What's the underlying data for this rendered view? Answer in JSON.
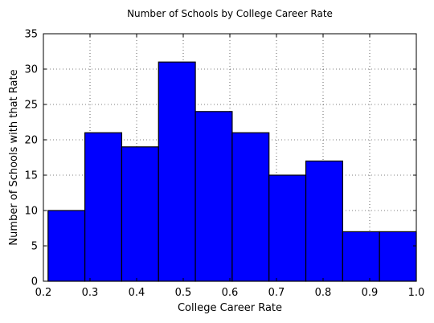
{
  "chart_data": {
    "type": "bar",
    "title": "Number of Schools by College Career Rate",
    "xlabel": "College Career Rate",
    "ylabel": "Number of Schools with that Rate",
    "xlim": [
      0.2,
      1.0
    ],
    "ylim": [
      0,
      35
    ],
    "xticks": [
      "0.2",
      "0.3",
      "0.4",
      "0.5",
      "0.6",
      "0.7",
      "0.8",
      "0.9",
      "1.0"
    ],
    "yticks": [
      "0",
      "5",
      "10",
      "15",
      "20",
      "25",
      "30",
      "35"
    ],
    "grid": true,
    "bar_color": "#0000ff",
    "bin_edges": [
      0.21,
      0.289,
      0.368,
      0.447,
      0.526,
      0.605,
      0.684,
      0.763,
      0.842,
      0.921,
      1.0
    ],
    "values": [
      10,
      21,
      19,
      31,
      24,
      21,
      15,
      17,
      7,
      7
    ]
  }
}
